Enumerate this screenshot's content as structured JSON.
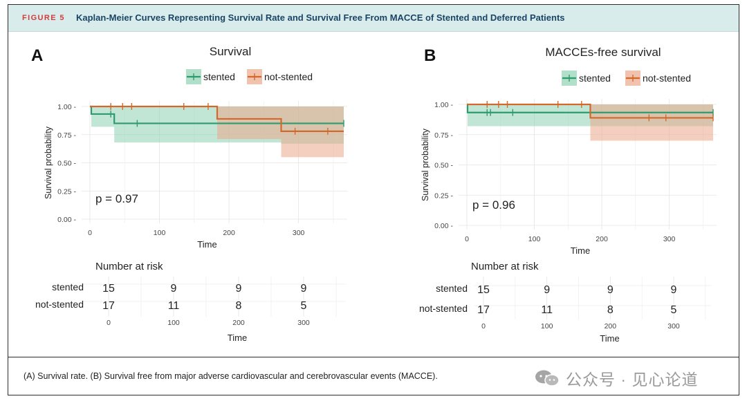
{
  "figure": {
    "label": "FIGURE 5",
    "title": "Kaplan-Meier Curves Representing Survival Rate and Survival Free From MACCE of Stented and Deferred Patients",
    "caption": "(A) Survival rate. (B) Survival free from major adverse cardiovascular and cerebrovascular events (MACCE).",
    "watermark": "公众号 · 见心论道"
  },
  "colors": {
    "stented": "#2e9a6e",
    "not_stented": "#d2692a",
    "stented_fill": "#8fd1b3",
    "not_stented_fill": "#eba88a"
  },
  "chart_data": [
    {
      "type": "line",
      "panel_letter": "A",
      "title": "Survival",
      "xlabel": "Time",
      "ylabel": "Survival probability",
      "xlim": [
        0,
        365
      ],
      "ylim": [
        0,
        1
      ],
      "xticks": [
        0,
        100,
        200,
        300
      ],
      "yticks": [
        0,
        0.25,
        0.5,
        0.75,
        1.0
      ],
      "ytick_labels": [
        "0.00",
        "0.25",
        "0.50",
        "0.75",
        "1.00"
      ],
      "pvalue": "p = 0.97",
      "legend": [
        "stented",
        "not-stented"
      ],
      "series": [
        {
          "name": "stented",
          "steps": [
            [
              0,
              1.0
            ],
            [
              2,
              0.933
            ],
            [
              35,
              0.85
            ],
            [
              183,
              0.85
            ],
            [
              365,
              0.85
            ]
          ],
          "ci": [
            [
              0,
              1.0,
              1.0
            ],
            [
              2,
              0.82,
              1.0
            ],
            [
              35,
              0.68,
              1.0
            ],
            [
              183,
              0.68,
              1.0
            ],
            [
              275,
              0.67,
              1.0
            ],
            [
              365,
              0.67,
              1.0
            ]
          ],
          "censor": [
            [
              30,
              0.933
            ],
            [
              68,
              0.85
            ],
            [
              365,
              0.85
            ]
          ]
        },
        {
          "name": "not-stented",
          "steps": [
            [
              0,
              1.0
            ],
            [
              183,
              0.89
            ],
            [
              275,
              0.78
            ],
            [
              365,
              0.78
            ]
          ],
          "ci": [
            [
              0,
              1.0,
              1.0
            ],
            [
              183,
              0.71,
              1.0
            ],
            [
              275,
              0.55,
              1.0
            ],
            [
              365,
              0.55,
              1.0
            ]
          ],
          "censor": [
            [
              30,
              1.0
            ],
            [
              47,
              1.0
            ],
            [
              60,
              1.0
            ],
            [
              135,
              1.0
            ],
            [
              170,
              1.0
            ],
            [
              295,
              0.78
            ],
            [
              342,
              0.78
            ]
          ]
        }
      ],
      "risk_table": {
        "title": "Number at risk",
        "xlabel": "Time",
        "times": [
          0,
          100,
          200,
          300
        ],
        "rows": [
          {
            "name": "stented",
            "values": [
              15,
              9,
              9,
              9
            ]
          },
          {
            "name": "not-stented",
            "values": [
              17,
              11,
              8,
              5
            ]
          }
        ]
      }
    },
    {
      "type": "line",
      "panel_letter": "B",
      "title": "MACCEs-free survival",
      "xlabel": "Time",
      "ylabel": "Survival probability",
      "xlim": [
        0,
        365
      ],
      "ylim": [
        0,
        1
      ],
      "xticks": [
        0,
        100,
        200,
        300
      ],
      "yticks": [
        0,
        0.25,
        0.5,
        0.75,
        1.0
      ],
      "ytick_labels": [
        "0.00",
        "0.25",
        "0.50",
        "0.75",
        "1.00"
      ],
      "pvalue": "p = 0.96",
      "legend": [
        "stented",
        "not-stented"
      ],
      "series": [
        {
          "name": "stented",
          "steps": [
            [
              0,
              1.0
            ],
            [
              1,
              0.933
            ],
            [
              365,
              0.933
            ]
          ],
          "ci": [
            [
              0,
              1.0,
              1.0
            ],
            [
              1,
              0.82,
              1.0
            ],
            [
              365,
              0.82,
              1.0
            ]
          ],
          "censor": [
            [
              30,
              0.933
            ],
            [
              35,
              0.933
            ],
            [
              68,
              0.933
            ],
            [
              365,
              0.933
            ]
          ]
        },
        {
          "name": "not-stented",
          "steps": [
            [
              0,
              1.0
            ],
            [
              183,
              0.889
            ],
            [
              365,
              0.889
            ]
          ],
          "ci": [
            [
              0,
              1.0,
              1.0
            ],
            [
              183,
              0.7,
              1.0
            ],
            [
              365,
              0.7,
              1.0
            ]
          ],
          "censor": [
            [
              30,
              1.0
            ],
            [
              47,
              1.0
            ],
            [
              60,
              1.0
            ],
            [
              135,
              1.0
            ],
            [
              170,
              1.0
            ],
            [
              270,
              0.889
            ],
            [
              295,
              0.889
            ],
            [
              365,
              0.889
            ]
          ]
        }
      ],
      "risk_table": {
        "title": "Number at risk",
        "xlabel": "Time",
        "times": [
          0,
          100,
          200,
          300
        ],
        "rows": [
          {
            "name": "stented",
            "values": [
              15,
              9,
              9,
              9
            ]
          },
          {
            "name": "not-stented",
            "values": [
              17,
              11,
              8,
              5
            ]
          }
        ]
      }
    }
  ]
}
